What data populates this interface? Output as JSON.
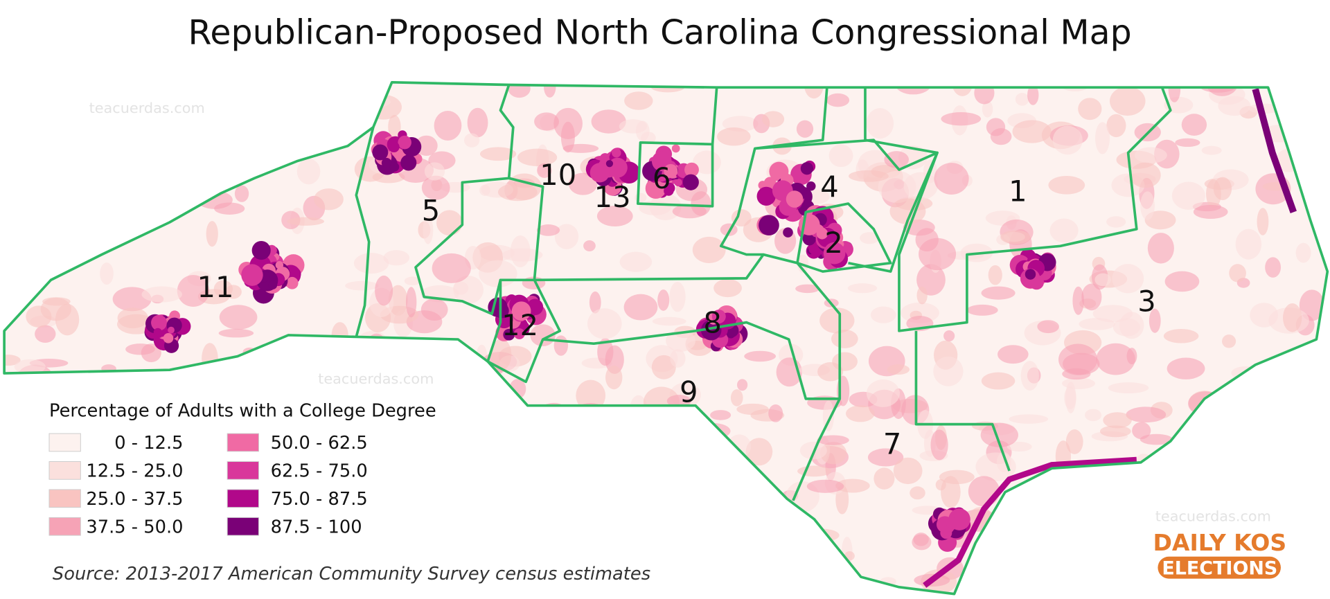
{
  "title": "Republican-Proposed North Carolina Congressional Map",
  "districts": [
    "1",
    "2",
    "3",
    "4",
    "5",
    "6",
    "7",
    "8",
    "9",
    "10",
    "11",
    "12",
    "13"
  ],
  "legend": {
    "title": "Percentage of Adults with a College Degree",
    "items": [
      {
        "label": "0 - 12.5",
        "color": "#fdf2ef"
      },
      {
        "label": "12.5 - 25.0",
        "color": "#fbe0dd"
      },
      {
        "label": "25.0 - 37.5",
        "color": "#f9c4c1"
      },
      {
        "label": "37.5 - 50.0",
        "color": "#f6a3b6"
      },
      {
        "label": "50.0 - 62.5",
        "color": "#f06aa4"
      },
      {
        "label": "62.5 - 75.0",
        "color": "#d9379b"
      },
      {
        "label": "75.0 - 87.5",
        "color": "#b1088a"
      },
      {
        "label": "87.5 - 100",
        "color": "#7a0177"
      }
    ]
  },
  "source": "Source: 2013-2017 American Community Survey census estimates",
  "logo": {
    "line1": "DAILY KOS",
    "line2": "ELECTIONS"
  },
  "watermarks": [
    "teacuerdas.com",
    "teacuerdas.com",
    "teacuerdas.com"
  ]
}
